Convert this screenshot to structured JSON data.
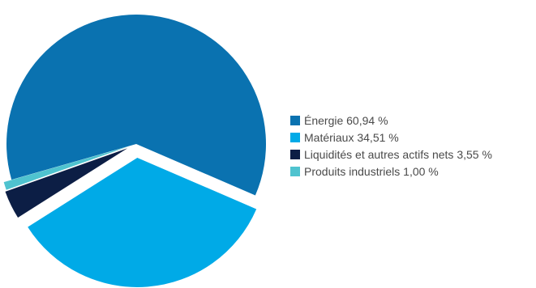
{
  "chart_data": {
    "type": "pie",
    "title": "",
    "legend_position": "right",
    "slices": [
      {
        "label": "Énergie 60,94 %",
        "name": "Énergie",
        "value": 60.94,
        "color": "#0A72B0"
      },
      {
        "label": "Matériaux 34,51 %",
        "name": "Matériaux",
        "value": 34.51,
        "color": "#00AAE7"
      },
      {
        "label": "Liquidités et autres actifs nets 3,55 %",
        "name": "Liquidités et autres actifs nets",
        "value": 3.55,
        "color": "#0C1E45"
      },
      {
        "label": "Produits industriels 1,00 %",
        "name": "Produits industriels",
        "value": 1.0,
        "color": "#4FC3CF"
      }
    ]
  }
}
